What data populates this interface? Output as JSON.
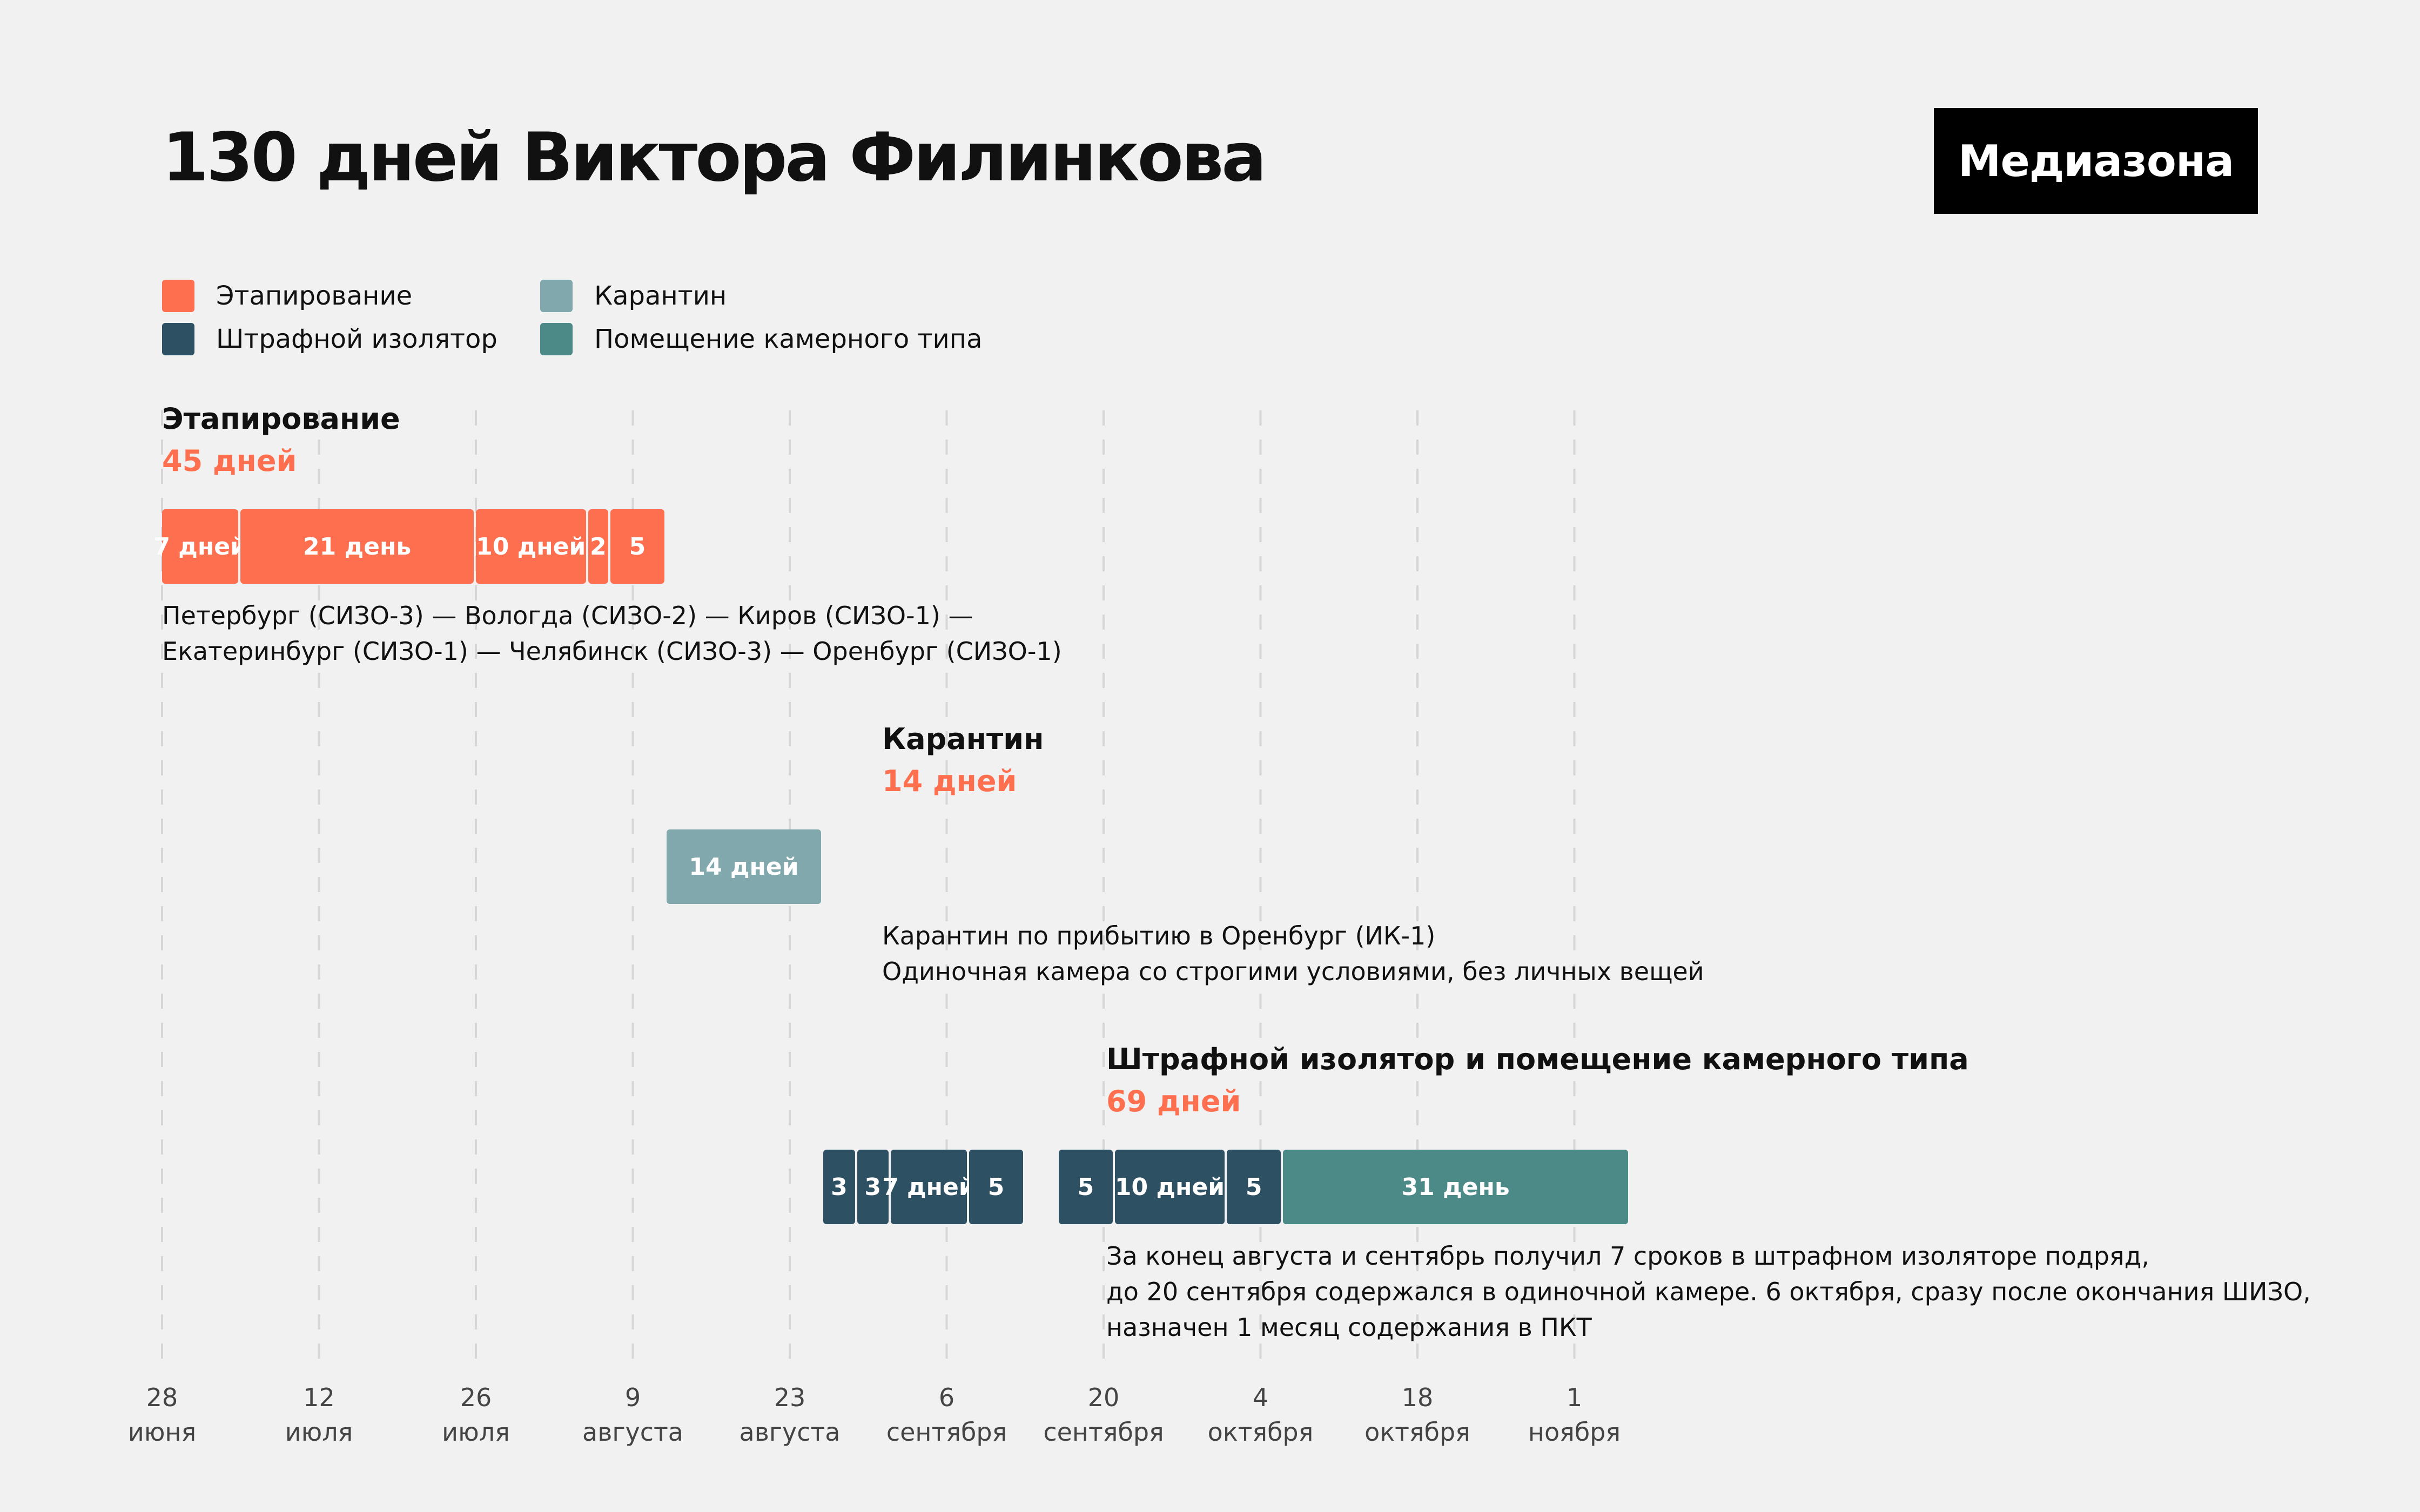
{
  "title": "130 дней Виктора Филинкова",
  "logo": "Медиазона",
  "colors": {
    "background": "#f1f1f1",
    "etap": "#fe6f4f",
    "shizo": "#2d5063",
    "quarantine": "#81a9ad",
    "pkt": "#4b8a86",
    "count_text": "#fe6f4f",
    "gridline": "#d6d6d6"
  },
  "legend": [
    {
      "label": "Этапирование",
      "color": "#fe6f4f"
    },
    {
      "label": "Штрафной изолятор",
      "color": "#2d5063"
    },
    {
      "label": "Карантин",
      "color": "#81a9ad"
    },
    {
      "label": "Помещение камерного типа",
      "color": "#4b8a86"
    }
  ],
  "sections": [
    {
      "title": "Этапирование",
      "count": "45 дней",
      "note": [
        "Петербург (СИЗО-3) — Вологда (СИЗО-2) — Киров (СИЗО-1) —",
        "Екатеринбург (СИЗО-1) — Челябинск (СИЗО-3) — Оренбург (СИЗО-1)"
      ]
    },
    {
      "title": "Карантин",
      "count": "14 дней",
      "note": [
        "Карантин по прибытию в Оренбург (ИК-1)",
        "Одиночная камера со строгими условиями, без личных вещей"
      ]
    },
    {
      "title": "Штрафной изолятор и помещение камерного типа",
      "count": "69 дней",
      "note": [
        "За конец августа и сентябрь получил 7 сроков в штрафном изоляторе подряд,",
        "до 20 сентября содержался в одиночной камере. 6 октября, сразу после окончания ШИЗО,",
        "назначен 1 месяц содержания в ПКТ"
      ]
    }
  ],
  "chart_data": {
    "type": "gantt",
    "x_axis": {
      "type": "date",
      "range": [
        "2018-06-28",
        "2018-11-05"
      ],
      "ticks": [
        {
          "date": "2018-06-28",
          "day": "28",
          "month": "июня"
        },
        {
          "date": "2018-07-12",
          "day": "12",
          "month": "июля"
        },
        {
          "date": "2018-07-26",
          "day": "26",
          "month": "июля"
        },
        {
          "date": "2018-08-09",
          "day": "9",
          "month": "августа"
        },
        {
          "date": "2018-08-23",
          "day": "23",
          "month": "августа"
        },
        {
          "date": "2018-09-06",
          "day": "6",
          "month": "сентября"
        },
        {
          "date": "2018-09-20",
          "day": "20",
          "month": "сентября"
        },
        {
          "date": "2018-10-04",
          "day": "4",
          "month": "октября"
        },
        {
          "date": "2018-10-18",
          "day": "18",
          "month": "октября"
        },
        {
          "date": "2018-11-01",
          "day": "1",
          "month": "ноября"
        }
      ]
    },
    "grid": "vertical dashed",
    "rows": [
      {
        "segments": [
          {
            "start": "2018-06-28",
            "days": 7,
            "label": "7 дней",
            "category": "etap"
          },
          {
            "start": "2018-07-05",
            "days": 21,
            "label": "21 день",
            "category": "etap"
          },
          {
            "start": "2018-07-26",
            "days": 10,
            "label": "10 дней",
            "category": "etap"
          },
          {
            "start": "2018-08-05",
            "days": 2,
            "label": "2",
            "category": "etap"
          },
          {
            "start": "2018-08-07",
            "days": 5,
            "label": "5",
            "category": "etap"
          }
        ]
      },
      {
        "segments": [
          {
            "start": "2018-08-12",
            "days": 14,
            "label": "14 дней",
            "category": "quarantine"
          }
        ]
      },
      {
        "segments": [
          {
            "start": "2018-08-26",
            "days": 3,
            "label": "3",
            "category": "shizo"
          },
          {
            "start": "2018-08-29",
            "days": 3,
            "label": "3",
            "category": "shizo"
          },
          {
            "start": "2018-09-01",
            "days": 7,
            "label": "7 дней",
            "category": "shizo"
          },
          {
            "start": "2018-09-08",
            "days": 5,
            "label": "5",
            "category": "shizo"
          },
          {
            "start": "2018-09-16",
            "days": 5,
            "label": "5",
            "category": "shizo"
          },
          {
            "start": "2018-09-21",
            "days": 10,
            "label": "10 дней",
            "category": "shizo"
          },
          {
            "start": "2018-10-01",
            "days": 5,
            "label": "5",
            "category": "shizo"
          },
          {
            "start": "2018-10-06",
            "days": 31,
            "label": "31 день",
            "category": "pkt"
          }
        ]
      }
    ]
  }
}
